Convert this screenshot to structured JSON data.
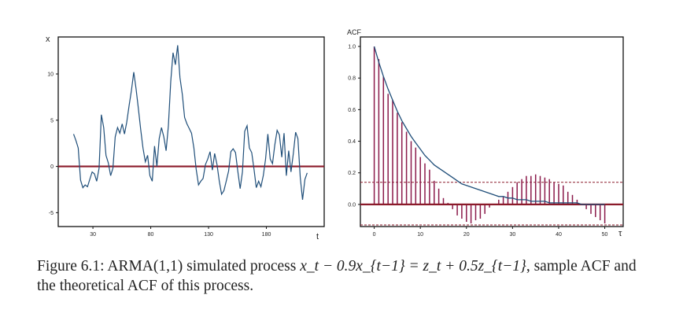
{
  "chart_data": [
    {
      "type": "line",
      "title": "",
      "ylabel": "x",
      "xlabel": "t",
      "xlim": [
        0,
        230
      ],
      "ylim": [
        -6.5,
        14
      ],
      "xticks": [
        30,
        80,
        130,
        180
      ],
      "yticks": [
        -5,
        0,
        5,
        10
      ],
      "ytick_labels": [
        "-5",
        "0",
        "5",
        "10"
      ],
      "grid": false,
      "reference_line_y": 0,
      "series": [
        {
          "color": "#1f4e79",
          "x": [
            0,
            2,
            4,
            6,
            8,
            10,
            12,
            14,
            16,
            18,
            20,
            22,
            24,
            26,
            28,
            30,
            32,
            34,
            36,
            38,
            40,
            42,
            44,
            46,
            48,
            50,
            52,
            54,
            56,
            58,
            60,
            62,
            64,
            66,
            68,
            70,
            72,
            74,
            76,
            78,
            80,
            82,
            84,
            86,
            88,
            90,
            92,
            94,
            96,
            98,
            100,
            102,
            104,
            106,
            108,
            110,
            112,
            114,
            116,
            118,
            120,
            122,
            124,
            126,
            128,
            130,
            132,
            134,
            136,
            138,
            140,
            142,
            144,
            146,
            148,
            150,
            152,
            154,
            156,
            158,
            160,
            162,
            164,
            166,
            168,
            170,
            172,
            174,
            176,
            178,
            180,
            182,
            184,
            186,
            188,
            190,
            192,
            194,
            196,
            198,
            200,
            202
          ],
          "y": [
            3.5,
            2.8,
            2.0,
            -1.5,
            -2.3,
            -2.0,
            -2.2,
            -1.4,
            -0.6,
            -0.8,
            -1.6,
            -0.2,
            5.6,
            4.2,
            1.2,
            0.4,
            -1.0,
            -0.2,
            3.2,
            4.2,
            3.6,
            4.6,
            3.5,
            4.8,
            6.6,
            8.2,
            10.2,
            8.4,
            6.3,
            4.0,
            2.0,
            0.5,
            1.2,
            -1.0,
            -1.6,
            2.2,
            0.0,
            3.0,
            4.2,
            3.2,
            1.7,
            4.4,
            9.2,
            12.3,
            11.0,
            13.1,
            9.6,
            7.8,
            5.3,
            4.6,
            4.1,
            3.6,
            2.0,
            -0.3,
            -2.0,
            -1.6,
            -1.3,
            0.2,
            0.8,
            1.6,
            -0.4,
            1.4,
            0.2,
            -1.6,
            -3.0,
            -2.6,
            -1.6,
            -0.5,
            1.6,
            1.9,
            1.5,
            -0.5,
            -2.4,
            -0.6,
            3.8,
            4.4,
            2.0,
            1.5,
            -0.3,
            -2.3,
            -1.6,
            -2.2,
            -1.0,
            0.8,
            3.5,
            0.8,
            0.3,
            2.3,
            3.9,
            3.4,
            1.0,
            3.6,
            -1.0,
            1.7,
            -0.6,
            1.4,
            3.7,
            3.0,
            -1.2,
            -3.6,
            -1.4,
            -0.7
          ]
        }
      ]
    },
    {
      "type": "bar",
      "title": "",
      "ylabel": "ACF",
      "xlabel": "τ",
      "xlim": [
        -3,
        54
      ],
      "ylim": [
        -0.14,
        1.06
      ],
      "xticks": [
        0,
        10,
        20,
        30,
        40,
        50
      ],
      "yticks": [
        0,
        0.2,
        0.4,
        0.6,
        0.8,
        1.0
      ],
      "ytick_labels": [
        "0.0",
        "0.2",
        "0.4",
        "0.6",
        "0.8",
        "1.0"
      ],
      "grid": false,
      "confidence_band": [
        -0.13,
        0.14
      ],
      "reference_line_y": 0,
      "series": [
        {
          "color": "#8b1a4a",
          "x": [
            0,
            1,
            2,
            3,
            4,
            5,
            6,
            7,
            8,
            9,
            10,
            11,
            12,
            13,
            14,
            15,
            16,
            17,
            18,
            19,
            20,
            21,
            22,
            23,
            24,
            25,
            26,
            27,
            28,
            29,
            30,
            31,
            32,
            33,
            34,
            35,
            36,
            37,
            38,
            39,
            40,
            41,
            42,
            43,
            44,
            45,
            46,
            47,
            48,
            49,
            50
          ],
          "values": [
            1.0,
            0.92,
            0.81,
            0.7,
            0.66,
            0.58,
            0.52,
            0.46,
            0.4,
            0.36,
            0.3,
            0.26,
            0.22,
            0.15,
            0.1,
            0.04,
            0.01,
            -0.03,
            -0.07,
            -0.09,
            -0.11,
            -0.12,
            -0.1,
            -0.09,
            -0.06,
            -0.02,
            0.0,
            0.03,
            0.05,
            0.08,
            0.11,
            0.14,
            0.16,
            0.18,
            0.18,
            0.19,
            0.18,
            0.17,
            0.16,
            0.14,
            0.13,
            0.12,
            0.08,
            0.06,
            0.03,
            0.0,
            -0.03,
            -0.06,
            -0.08,
            -0.1,
            -0.12
          ]
        },
        {
          "color": "#1f4e79",
          "x": [
            0,
            1,
            2,
            3,
            4,
            5,
            6,
            7,
            8,
            9,
            10,
            11,
            12,
            13,
            14,
            15,
            16,
            17,
            18,
            19,
            20,
            21,
            22,
            23,
            24,
            25,
            26,
            27,
            28,
            29,
            30,
            31,
            32,
            33,
            34,
            35,
            36,
            37,
            38,
            39,
            40,
            41,
            42,
            43,
            44,
            45,
            46,
            47,
            48,
            49,
            50
          ],
          "values": [
            1.0,
            0.9,
            0.81,
            0.73,
            0.66,
            0.59,
            0.53,
            0.48,
            0.43,
            0.39,
            0.35,
            0.31,
            0.28,
            0.25,
            0.23,
            0.21,
            0.19,
            0.17,
            0.15,
            0.13,
            0.12,
            0.11,
            0.1,
            0.09,
            0.08,
            0.07,
            0.06,
            0.05,
            0.05,
            0.04,
            0.04,
            0.03,
            0.03,
            0.03,
            0.02,
            0.02,
            0.02,
            0.02,
            0.01,
            0.01,
            0.01,
            0.01,
            0.01,
            0.01,
            0.01,
            0.0,
            0.0,
            0.0,
            0.0,
            0.0,
            0.0
          ]
        }
      ]
    }
  ],
  "caption": {
    "prefix": "Figure 6.1: ARMA(1,1) simulated process ",
    "equation": "x_t − 0.9x_{t−1} = z_t + 0.5z_{t−1}",
    "suffix": ", sample ACF and the theoretical ACF of this process."
  }
}
